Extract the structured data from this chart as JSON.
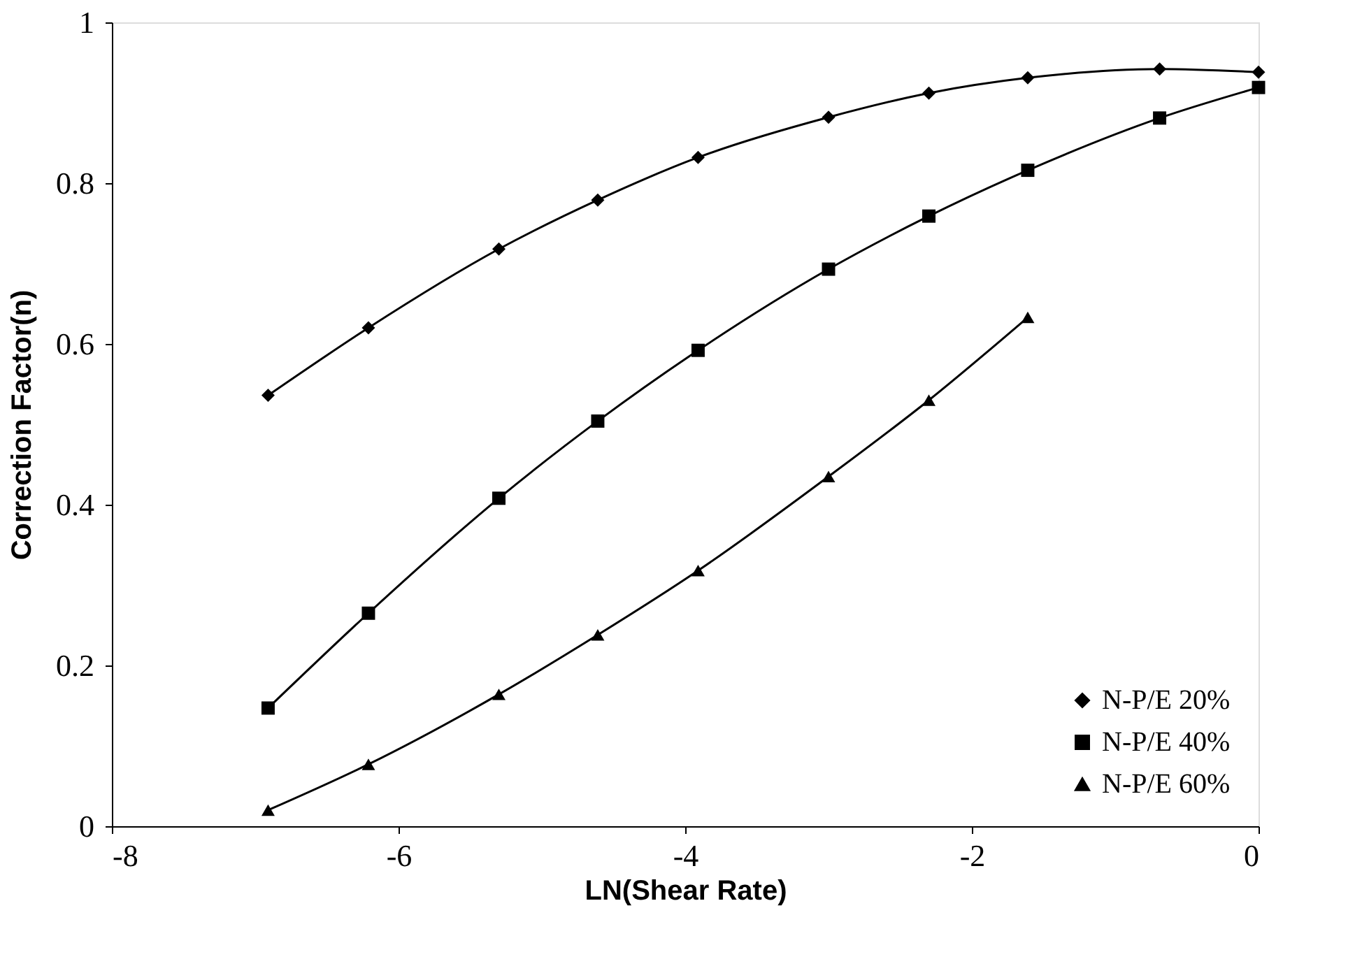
{
  "chart_data": {
    "type": "line",
    "xlabel": "LN(Shear Rate)",
    "ylabel": "Correction Factor(n)",
    "xlim": [
      -8,
      0
    ],
    "xticks": [
      -8,
      -6,
      -4,
      -2,
      0
    ],
    "ylim": [
      0,
      1
    ],
    "yticks": [
      0,
      0.2,
      0.4,
      0.6,
      0.8,
      1
    ],
    "grid": false,
    "legend": "bottom right",
    "line_style": "solid",
    "series": [
      {
        "name": "N-P/E 20%",
        "color": "#000000",
        "marker": "diamond",
        "x": [
          -6.91,
          -6.21,
          -5.3,
          -4.61,
          -3.91,
          -3.0,
          -2.3,
          -1.61,
          -0.69,
          0
        ],
        "values": [
          0.536,
          0.62,
          0.718,
          0.779,
          0.832,
          0.882,
          0.912,
          0.931,
          0.942,
          0.938
        ]
      },
      {
        "name": "N-P/E 40%",
        "color": "#000000",
        "marker": "square",
        "x": [
          -6.91,
          -6.21,
          -5.3,
          -4.61,
          -3.91,
          -3.0,
          -2.3,
          -1.61,
          -0.69,
          0
        ],
        "values": [
          0.147,
          0.265,
          0.408,
          0.504,
          0.592,
          0.693,
          0.759,
          0.816,
          0.881,
          0.919
        ]
      },
      {
        "name": "N-P/E 60%",
        "color": "#000000",
        "marker": "triangle",
        "x": [
          -6.91,
          -6.21,
          -5.3,
          -4.61,
          -3.91,
          -3.0,
          -2.3,
          -1.61
        ],
        "values": [
          0.02,
          0.077,
          0.164,
          0.238,
          0.318,
          0.435,
          0.53,
          0.633
        ]
      }
    ]
  }
}
